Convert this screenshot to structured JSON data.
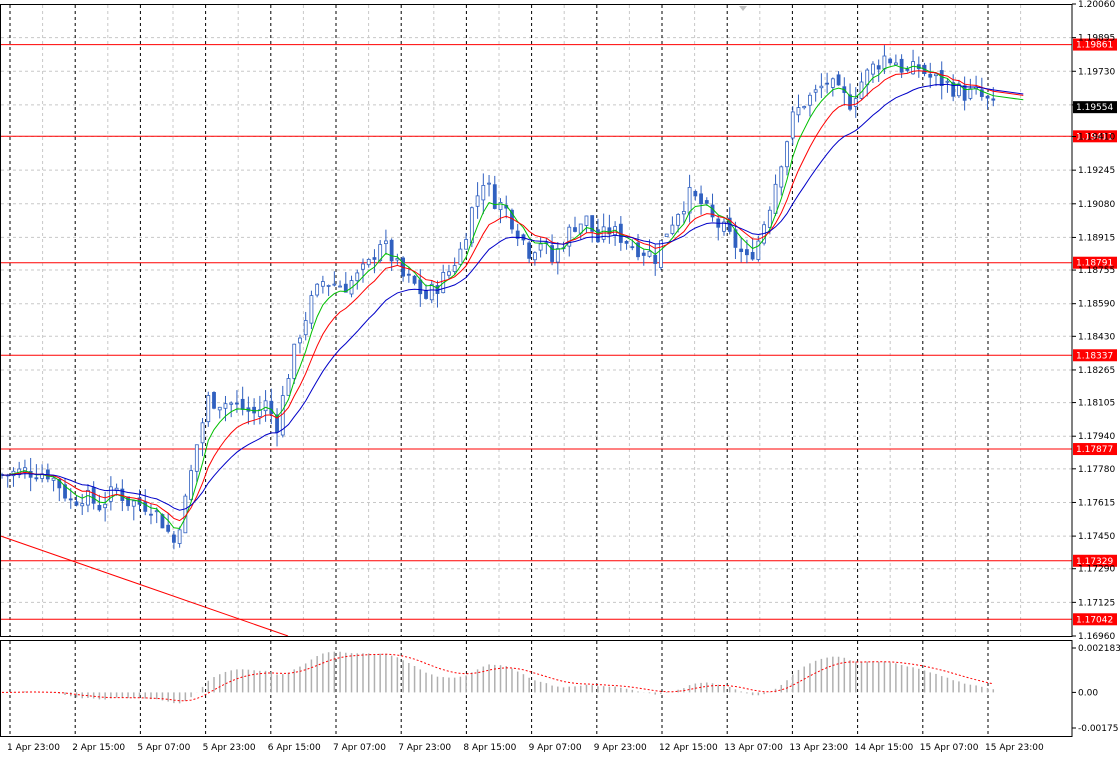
{
  "chart_data": {
    "type": "candlestick",
    "price_axis": {
      "range": [
        1.1696,
        1.2006
      ],
      "ticks": [
        "1.20060",
        "1.19895",
        "1.19730",
        "1.19565",
        "1.19410",
        "1.19245",
        "1.19080",
        "1.18915",
        "1.18755",
        "1.18590",
        "1.18430",
        "1.18265",
        "1.18105",
        "1.17940",
        "1.17780",
        "1.17615",
        "1.17450",
        "1.17290",
        "1.17125",
        "1.16960"
      ]
    },
    "time_axis": {
      "labels": [
        "1 Apr 23:00",
        "2 Apr 15:00",
        "5 Apr 07:00",
        "5 Apr 23:00",
        "6 Apr 15:00",
        "7 Apr 07:00",
        "7 Apr 23:00",
        "8 Apr 15:00",
        "9 Apr 07:00",
        "9 Apr 23:00",
        "12 Apr 15:00",
        "13 Apr 07:00",
        "13 Apr 23:00",
        "14 Apr 15:00",
        "15 Apr 07:00",
        "15 Apr 23:00"
      ]
    },
    "current_price": "1.19554",
    "levels": [
      {
        "price": 1.19861,
        "label": "1.19861"
      },
      {
        "price": 1.19411,
        "label": "1.19411"
      },
      {
        "price": 1.18791,
        "label": "1.18791"
      },
      {
        "price": 1.18337,
        "label": "1.18337"
      },
      {
        "price": 1.17877,
        "label": "1.17877"
      },
      {
        "price": 1.17329,
        "label": "1.17329"
      },
      {
        "price": 1.17042,
        "label": "1.17042"
      }
    ],
    "trendline": {
      "from": [
        "1 Apr 11:00",
        1.1745
      ],
      "to": [
        "6 Apr 15:00",
        1.1696
      ]
    },
    "close_path": [
      [
        0,
        1.1775
      ],
      [
        4,
        1.1777
      ],
      [
        8,
        1.1776
      ],
      [
        10,
        1.177
      ],
      [
        12,
        1.1762
      ],
      [
        14,
        1.1765
      ],
      [
        17,
        1.176
      ],
      [
        20,
        1.1768
      ],
      [
        22,
        1.1762
      ],
      [
        26,
        1.176
      ],
      [
        28,
        1.1752
      ],
      [
        30,
        1.1742
      ],
      [
        32,
        1.1762
      ],
      [
        34,
        1.179
      ],
      [
        36,
        1.1812
      ],
      [
        40,
        1.181
      ],
      [
        44,
        1.1805
      ],
      [
        46,
        1.181
      ],
      [
        48,
        1.18
      ],
      [
        50,
        1.1825
      ],
      [
        52,
        1.1845
      ],
      [
        54,
        1.186
      ],
      [
        56,
        1.187
      ],
      [
        60,
        1.1868
      ],
      [
        62,
        1.1872
      ],
      [
        64,
        1.1878
      ],
      [
        66,
        1.189
      ],
      [
        68,
        1.1882
      ],
      [
        70,
        1.1872
      ],
      [
        72,
        1.1868
      ],
      [
        74,
        1.1862
      ],
      [
        76,
        1.1868
      ],
      [
        78,
        1.1875
      ],
      [
        80,
        1.1885
      ],
      [
        82,
        1.1905
      ],
      [
        84,
        1.192
      ],
      [
        86,
        1.191
      ],
      [
        88,
        1.1905
      ],
      [
        90,
        1.1895
      ],
      [
        92,
        1.1885
      ],
      [
        94,
        1.189
      ],
      [
        96,
        1.188
      ],
      [
        98,
        1.189
      ],
      [
        100,
        1.1898
      ],
      [
        102,
        1.19
      ],
      [
        104,
        1.189
      ],
      [
        106,
        1.1895
      ],
      [
        108,
        1.1892
      ],
      [
        110,
        1.1888
      ],
      [
        112,
        1.1885
      ],
      [
        114,
        1.1882
      ],
      [
        116,
        1.1895
      ],
      [
        118,
        1.1905
      ],
      [
        120,
        1.1912
      ],
      [
        122,
        1.1908
      ],
      [
        124,
        1.19
      ],
      [
        126,
        1.1895
      ],
      [
        128,
        1.1888
      ],
      [
        130,
        1.188
      ],
      [
        132,
        1.189
      ],
      [
        134,
        1.1908
      ],
      [
        136,
        1.193
      ],
      [
        138,
        1.195
      ],
      [
        140,
        1.1958
      ],
      [
        142,
        1.1962
      ],
      [
        144,
        1.1968
      ],
      [
        146,
        1.1962
      ],
      [
        148,
        1.1958
      ],
      [
        150,
        1.1968
      ],
      [
        152,
        1.1975
      ],
      [
        154,
        1.198
      ],
      [
        156,
        1.1978
      ],
      [
        158,
        1.1972
      ],
      [
        160,
        1.1975
      ],
      [
        162,
        1.197
      ],
      [
        164,
        1.1968
      ],
      [
        166,
        1.1965
      ],
      [
        168,
        1.1962
      ],
      [
        170,
        1.1962
      ],
      [
        172,
        1.1958
      ],
      [
        173,
        1.1955
      ]
    ],
    "sub_axis": {
      "ticks": [
        "0.002183",
        "0.00",
        "-0.00175"
      ],
      "range": [
        -0.00175,
        0.002183
      ]
    },
    "ma_colors": {
      "fast": "#00c000",
      "medium": "#ff0000",
      "slow": "#0000c8"
    },
    "candle_color": "#3060c0",
    "level_color": "#ff0000",
    "current_price_bg": "#000000"
  }
}
